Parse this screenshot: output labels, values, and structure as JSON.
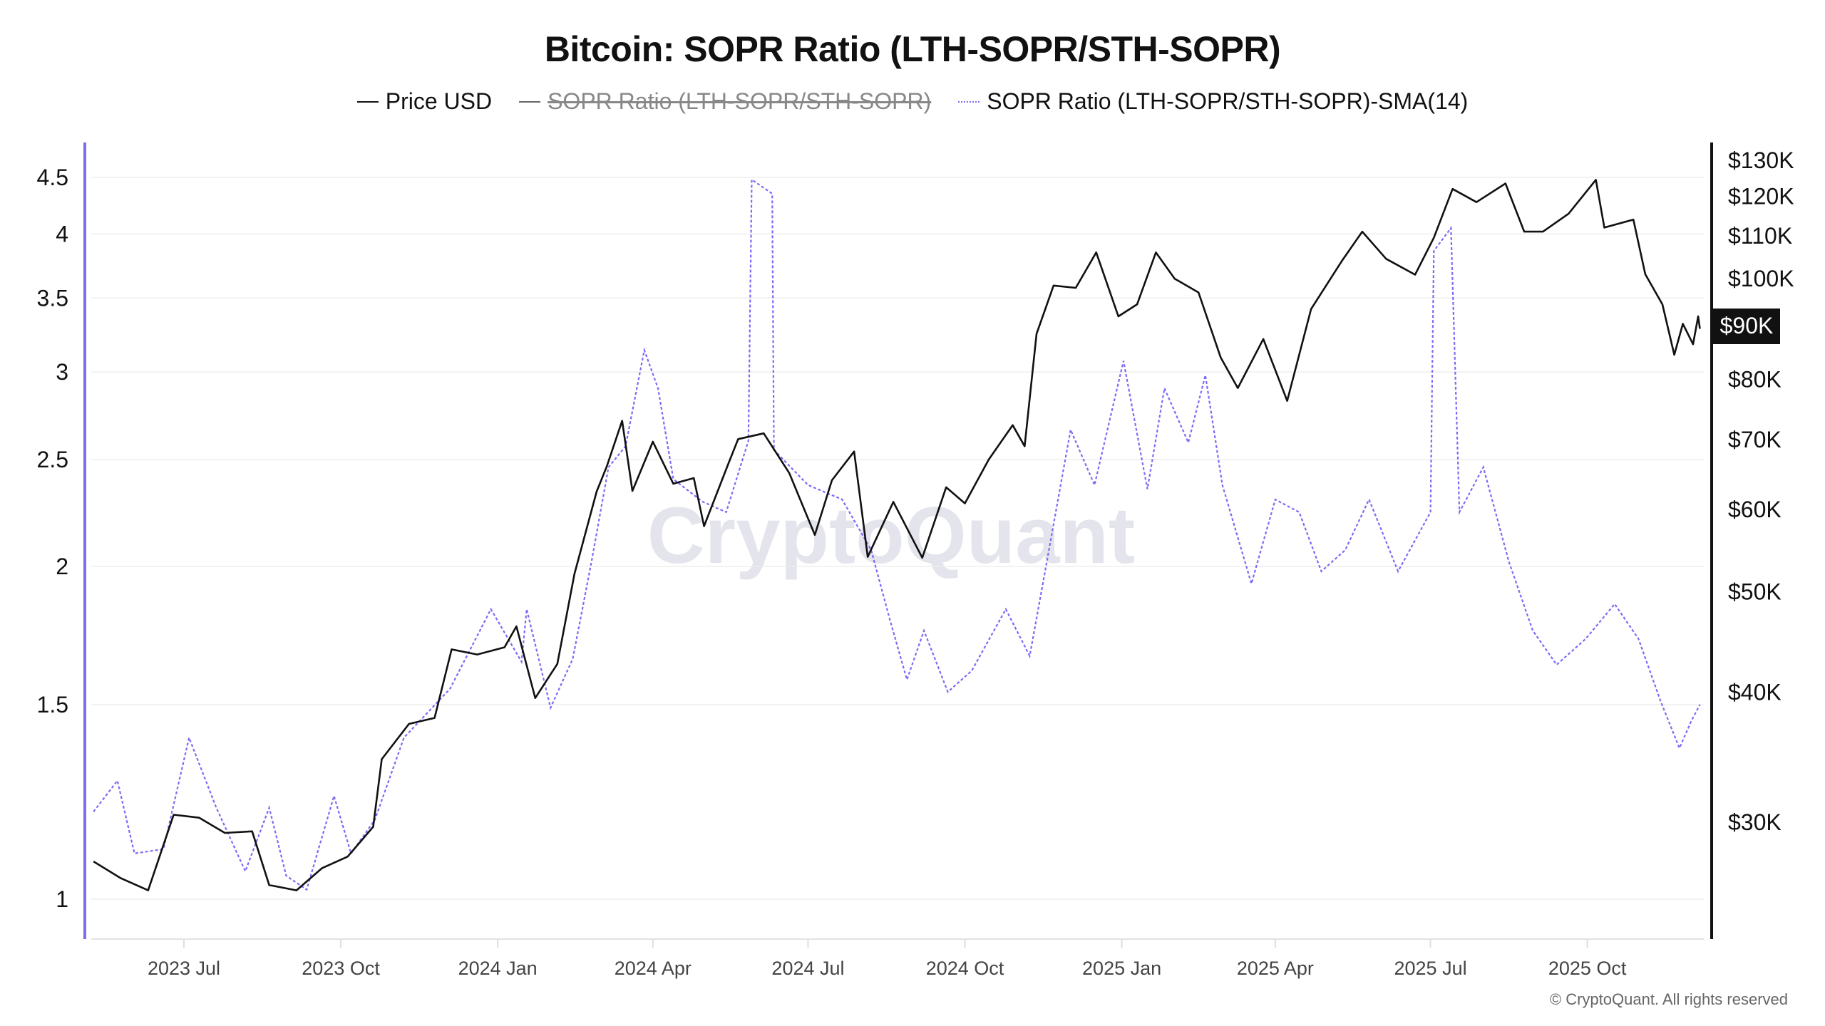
{
  "chart_data": {
    "type": "line",
    "title": "Bitcoin: SOPR Ratio (LTH-SOPR/STH-SOPR)",
    "legend": [
      {
        "name": "Price USD",
        "color": "#111111",
        "visible": true
      },
      {
        "name": "SOPR Ratio (LTH-SOPR/STH-SOPR)",
        "color": "#666666",
        "visible": false
      },
      {
        "name": "SOPR Ratio (LTH-SOPR/STH-SOPR)-SMA(14)",
        "color": "#7b6cf6",
        "visible": true
      }
    ],
    "legend_position": "top-center",
    "x_axis": {
      "type": "date",
      "range": [
        "2023-05-09",
        "2025-12-06"
      ],
      "ticks": [
        {
          "date": "2023-07-01",
          "label": "2023 Jul"
        },
        {
          "date": "2023-10-01",
          "label": "2023 Oct"
        },
        {
          "date": "2024-01-01",
          "label": "2024 Jan"
        },
        {
          "date": "2024-04-01",
          "label": "2024 Apr"
        },
        {
          "date": "2024-07-01",
          "label": "2024 Jul"
        },
        {
          "date": "2024-10-01",
          "label": "2024 Oct"
        },
        {
          "date": "2025-01-01",
          "label": "2025 Jan"
        },
        {
          "date": "2025-04-01",
          "label": "2025 Apr"
        },
        {
          "date": "2025-07-01",
          "label": "2025 Jul"
        },
        {
          "date": "2025-10-01",
          "label": "2025 Oct"
        }
      ]
    },
    "y_left": {
      "scale": "log",
      "range": [
        0.93,
        4.9
      ],
      "color": "#7b6cf6",
      "ticks": [
        {
          "v": 1,
          "label": "1"
        },
        {
          "v": 1.5,
          "label": "1.5"
        },
        {
          "v": 2,
          "label": "2"
        },
        {
          "v": 2.5,
          "label": "2.5"
        },
        {
          "v": 3,
          "label": "3"
        },
        {
          "v": 3.5,
          "label": "3.5"
        },
        {
          "v": 4,
          "label": "4"
        },
        {
          "v": 4.5,
          "label": "4.5"
        }
      ]
    },
    "y_right": {
      "scale": "log",
      "range": [
        22000,
        135000
      ],
      "ticks": [
        {
          "v": 30000,
          "label": "$30K"
        },
        {
          "v": 40000,
          "label": "$40K"
        },
        {
          "v": 50000,
          "label": "$50K"
        },
        {
          "v": 60000,
          "label": "$60K"
        },
        {
          "v": 70000,
          "label": "$70K"
        },
        {
          "v": 80000,
          "label": "$80K"
        },
        {
          "v": 100000,
          "label": "$100K"
        },
        {
          "v": 110000,
          "label": "$110K"
        },
        {
          "v": 120000,
          "label": "$120K"
        },
        {
          "v": 130000,
          "label": "$130K"
        }
      ],
      "current_label": "$90K",
      "current_value": 90000
    },
    "grid": true,
    "series": [
      {
        "name": "Price USD",
        "axis": "right",
        "points": [
          [
            "2023-05-09",
            27500
          ],
          [
            "2023-05-25",
            26500
          ],
          [
            "2023-06-10",
            25800
          ],
          [
            "2023-06-25",
            30500
          ],
          [
            "2023-07-10",
            30300
          ],
          [
            "2023-07-25",
            29300
          ],
          [
            "2023-08-10",
            29400
          ],
          [
            "2023-08-20",
            26100
          ],
          [
            "2023-09-05",
            25800
          ],
          [
            "2023-09-20",
            27100
          ],
          [
            "2023-10-05",
            27800
          ],
          [
            "2023-10-20",
            29700
          ],
          [
            "2023-10-25",
            34500
          ],
          [
            "2023-11-10",
            37300
          ],
          [
            "2023-11-25",
            37800
          ],
          [
            "2023-12-05",
            44000
          ],
          [
            "2023-12-20",
            43500
          ],
          [
            "2024-01-05",
            44200
          ],
          [
            "2024-01-12",
            46300
          ],
          [
            "2024-01-23",
            39500
          ],
          [
            "2024-02-05",
            42600
          ],
          [
            "2024-02-15",
            52000
          ],
          [
            "2024-02-28",
            62400
          ],
          [
            "2024-03-05",
            66000
          ],
          [
            "2024-03-14",
            73000
          ],
          [
            "2024-03-20",
            62500
          ],
          [
            "2024-04-01",
            69700
          ],
          [
            "2024-04-13",
            63500
          ],
          [
            "2024-04-25",
            64300
          ],
          [
            "2024-05-01",
            57800
          ],
          [
            "2024-05-15",
            66200
          ],
          [
            "2024-05-21",
            70100
          ],
          [
            "2024-06-05",
            71000
          ],
          [
            "2024-06-20",
            65000
          ],
          [
            "2024-07-05",
            56700
          ],
          [
            "2024-07-15",
            64000
          ],
          [
            "2024-07-28",
            68200
          ],
          [
            "2024-08-05",
            54000
          ],
          [
            "2024-08-20",
            61000
          ],
          [
            "2024-09-06",
            53900
          ],
          [
            "2024-09-20",
            63000
          ],
          [
            "2024-10-01",
            60800
          ],
          [
            "2024-10-15",
            67000
          ],
          [
            "2024-10-29",
            72300
          ],
          [
            "2024-11-05",
            69000
          ],
          [
            "2024-11-12",
            88500
          ],
          [
            "2024-11-22",
            98500
          ],
          [
            "2024-12-05",
            98000
          ],
          [
            "2024-12-17",
            106000
          ],
          [
            "2024-12-30",
            92000
          ],
          [
            "2025-01-10",
            94500
          ],
          [
            "2025-01-21",
            106000
          ],
          [
            "2025-02-01",
            100000
          ],
          [
            "2025-02-15",
            97000
          ],
          [
            "2025-02-28",
            84000
          ],
          [
            "2025-03-10",
            78500
          ],
          [
            "2025-03-25",
            87500
          ],
          [
            "2025-04-08",
            76300
          ],
          [
            "2025-04-22",
            93500
          ],
          [
            "2025-05-10",
            104000
          ],
          [
            "2025-05-22",
            111000
          ],
          [
            "2025-06-05",
            104500
          ],
          [
            "2025-06-22",
            100900
          ],
          [
            "2025-07-03",
            109500
          ],
          [
            "2025-07-14",
            122000
          ],
          [
            "2025-07-28",
            118500
          ],
          [
            "2025-08-14",
            123500
          ],
          [
            "2025-08-25",
            111000
          ],
          [
            "2025-09-05",
            111000
          ],
          [
            "2025-09-20",
            115500
          ],
          [
            "2025-10-06",
            124500
          ],
          [
            "2025-10-11",
            112000
          ],
          [
            "2025-10-28",
            114000
          ],
          [
            "2025-11-04",
            101000
          ],
          [
            "2025-11-14",
            94500
          ],
          [
            "2025-11-21",
            84500
          ],
          [
            "2025-11-26",
            90500
          ],
          [
            "2025-12-02",
            86500
          ],
          [
            "2025-12-05",
            92000
          ],
          [
            "2025-12-06",
            89500
          ]
        ]
      },
      {
        "name": "SOPR Ratio (LTH-SOPR/STH-SOPR)-SMA(14)",
        "axis": "left",
        "points": [
          [
            "2023-05-09",
            1.2
          ],
          [
            "2023-05-23",
            1.28
          ],
          [
            "2023-06-02",
            1.1
          ],
          [
            "2023-06-19",
            1.11
          ],
          [
            "2023-07-04",
            1.4
          ],
          [
            "2023-07-20",
            1.21
          ],
          [
            "2023-08-06",
            1.06
          ],
          [
            "2023-08-20",
            1.21
          ],
          [
            "2023-08-30",
            1.05
          ],
          [
            "2023-09-11",
            1.02
          ],
          [
            "2023-09-27",
            1.24
          ],
          [
            "2023-10-07",
            1.1
          ],
          [
            "2023-10-21",
            1.18
          ],
          [
            "2023-11-07",
            1.4
          ],
          [
            "2023-12-04",
            1.55
          ],
          [
            "2023-12-28",
            1.83
          ],
          [
            "2024-01-15",
            1.64
          ],
          [
            "2024-01-18",
            1.83
          ],
          [
            "2024-02-01",
            1.49
          ],
          [
            "2024-02-14",
            1.65
          ],
          [
            "2024-02-25",
            2.02
          ],
          [
            "2024-03-06",
            2.46
          ],
          [
            "2024-03-16",
            2.57
          ],
          [
            "2024-03-27",
            3.14
          ],
          [
            "2024-04-04",
            2.9
          ],
          [
            "2024-04-13",
            2.4
          ],
          [
            "2024-04-30",
            2.29
          ],
          [
            "2024-05-14",
            2.24
          ],
          [
            "2024-05-27",
            2.6
          ],
          [
            "2024-05-29",
            4.48
          ],
          [
            "2024-06-10",
            4.35
          ],
          [
            "2024-06-11",
            2.55
          ],
          [
            "2024-07-01",
            2.37
          ],
          [
            "2024-07-21",
            2.3
          ],
          [
            "2024-08-07",
            2.07
          ],
          [
            "2024-08-18",
            1.79
          ],
          [
            "2024-08-28",
            1.58
          ],
          [
            "2024-09-07",
            1.75
          ],
          [
            "2024-09-21",
            1.54
          ],
          [
            "2024-10-05",
            1.61
          ],
          [
            "2024-10-25",
            1.83
          ],
          [
            "2024-11-08",
            1.66
          ],
          [
            "2024-11-18",
            2.02
          ],
          [
            "2024-12-02",
            2.66
          ],
          [
            "2024-12-16",
            2.37
          ],
          [
            "2025-01-02",
            3.07
          ],
          [
            "2025-01-16",
            2.35
          ],
          [
            "2025-01-26",
            2.9
          ],
          [
            "2025-02-09",
            2.59
          ],
          [
            "2025-02-19",
            2.98
          ],
          [
            "2025-03-01",
            2.37
          ],
          [
            "2025-03-18",
            1.93
          ],
          [
            "2025-04-01",
            2.3
          ],
          [
            "2025-04-15",
            2.24
          ],
          [
            "2025-04-28",
            1.98
          ],
          [
            "2025-05-12",
            2.07
          ],
          [
            "2025-05-26",
            2.3
          ],
          [
            "2025-06-12",
            1.98
          ],
          [
            "2025-07-01",
            2.24
          ],
          [
            "2025-07-03",
            3.86
          ],
          [
            "2025-07-13",
            4.05
          ],
          [
            "2025-07-18",
            2.24
          ],
          [
            "2025-08-01",
            2.46
          ],
          [
            "2025-08-16",
            2.02
          ],
          [
            "2025-08-30",
            1.75
          ],
          [
            "2025-09-13",
            1.63
          ],
          [
            "2025-09-30",
            1.72
          ],
          [
            "2025-10-17",
            1.85
          ],
          [
            "2025-10-31",
            1.72
          ],
          [
            "2025-11-13",
            1.51
          ],
          [
            "2025-11-24",
            1.37
          ],
          [
            "2025-12-01",
            1.45
          ],
          [
            "2025-12-06",
            1.5
          ]
        ]
      }
    ],
    "watermark": "CryptoQuant",
    "copyright": "© CryptoQuant. All rights reserved"
  }
}
